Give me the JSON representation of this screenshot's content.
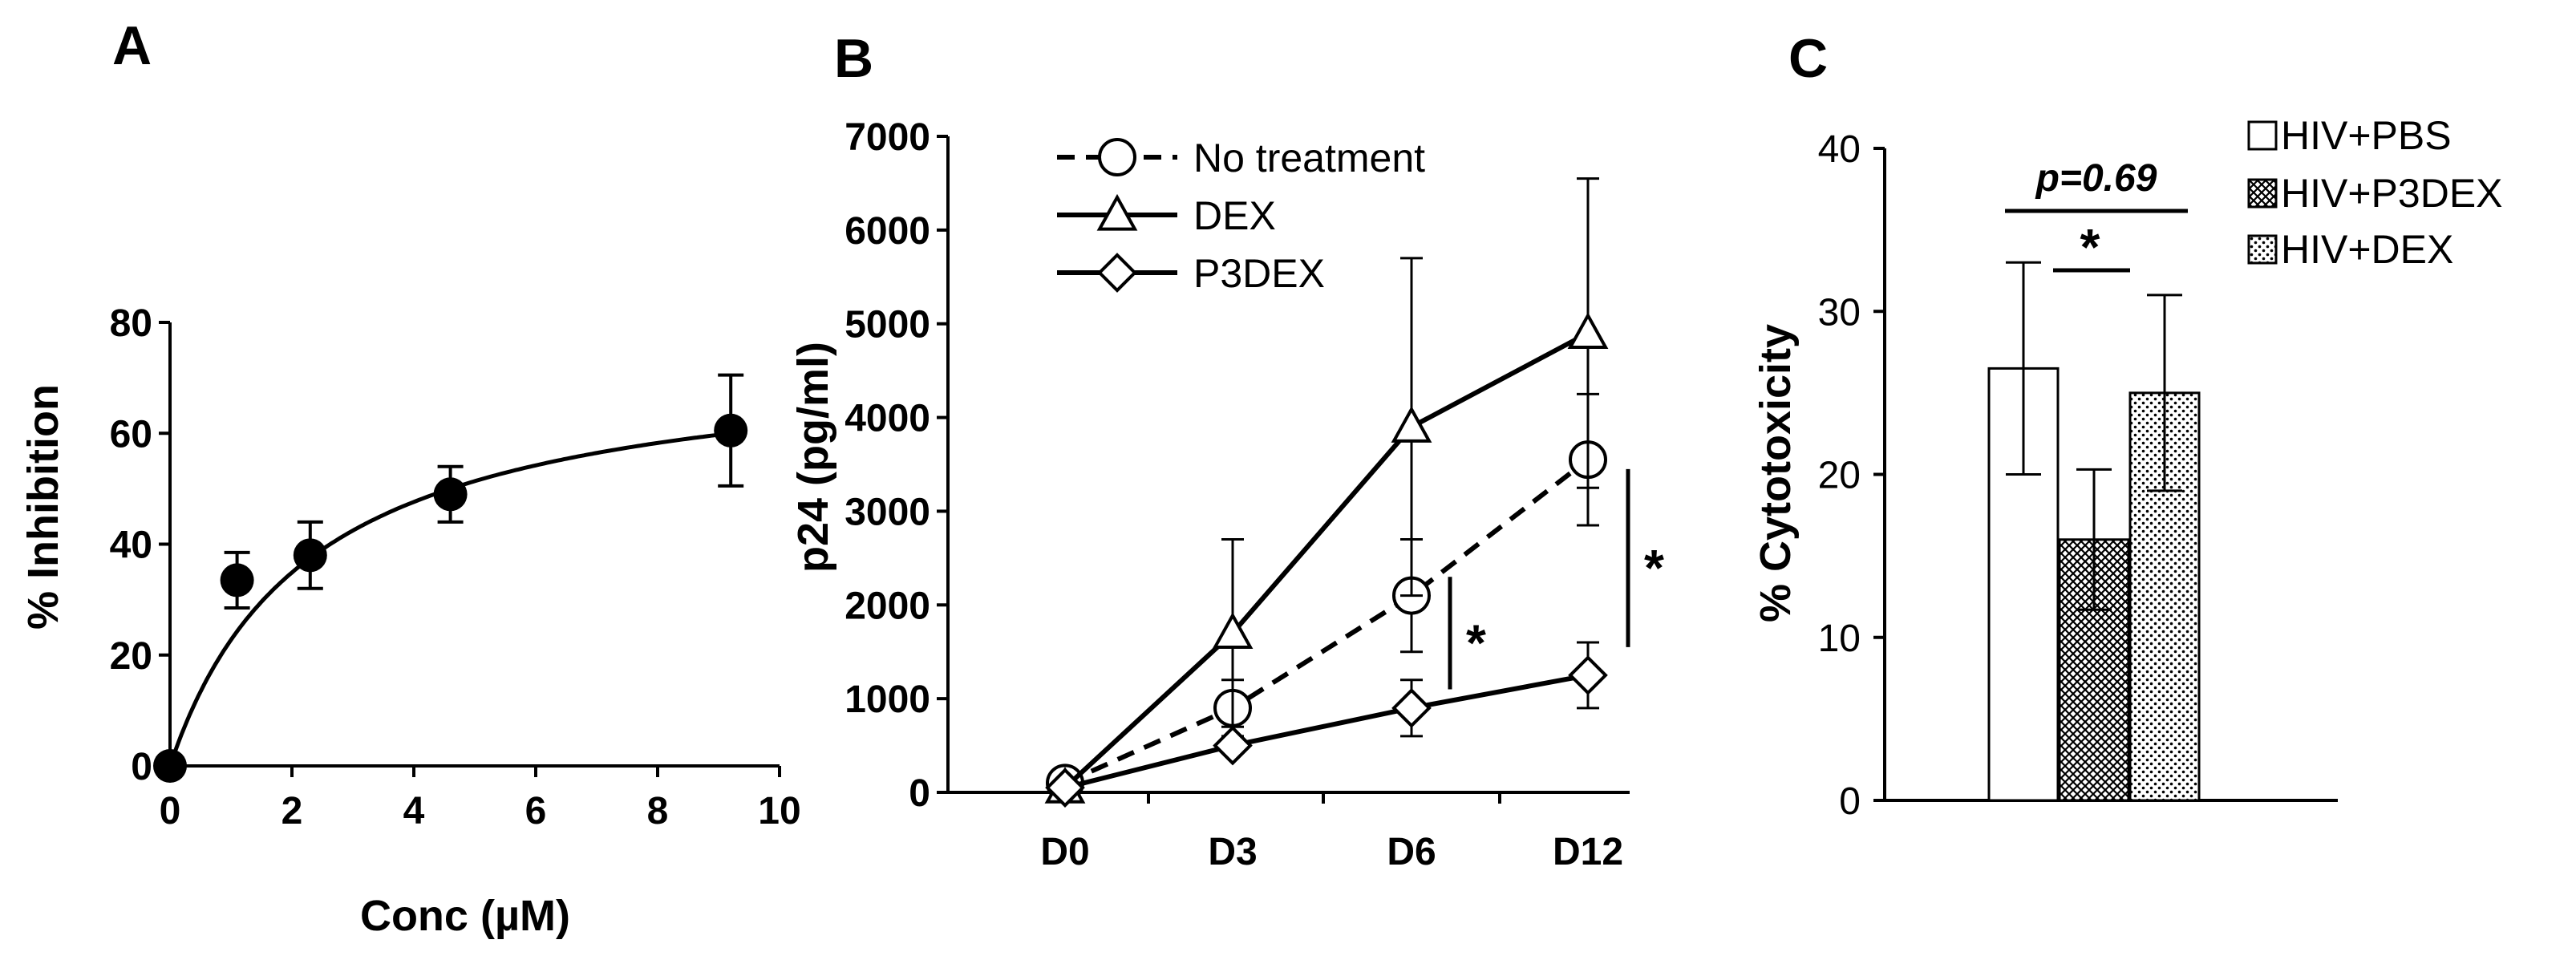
{
  "chart_data": [
    {
      "panel": "A",
      "type": "scatter",
      "xlabel": "Conc (µM)",
      "ylabel": "% Inhibition",
      "xlim": [
        0,
        10
      ],
      "ylim": [
        0,
        80
      ],
      "xticks": [
        "0",
        "2",
        "4",
        "6",
        "8",
        "10"
      ],
      "yticks": [
        "0",
        "20",
        "40",
        "60",
        "80"
      ],
      "points": [
        {
          "x": 0,
          "y": 0,
          "err": 0
        },
        {
          "x": 1.1,
          "y": 33.5,
          "err": 5
        },
        {
          "x": 2.3,
          "y": 38,
          "err": 6
        },
        {
          "x": 4.6,
          "y": 49,
          "err": 5
        },
        {
          "x": 9.2,
          "y": 60.5,
          "err": 10
        }
      ],
      "fit": {
        "model": "hyperbolic",
        "vmax": 75,
        "k": 2.3
      }
    },
    {
      "panel": "B",
      "type": "line",
      "xlabel": "",
      "ylabel": "p24 (pg/ml)",
      "categories": [
        "D0",
        "D3",
        "D6",
        "D12"
      ],
      "ylim": [
        0,
        7000
      ],
      "yticks": [
        "0",
        "1000",
        "2000",
        "3000",
        "4000",
        "5000",
        "6000",
        "7000"
      ],
      "series": [
        {
          "name": "No treatment",
          "marker": "circle",
          "dashed": true,
          "values": [
            100,
            900,
            2100,
            3550
          ],
          "err": [
            0,
            300,
            600,
            700
          ]
        },
        {
          "name": "DEX",
          "marker": "triangle",
          "dashed": false,
          "values": [
            50,
            1700,
            3900,
            4900
          ],
          "err": [
            0,
            1000,
            1800,
            1650
          ]
        },
        {
          "name": "P3DEX",
          "marker": "diamond",
          "dashed": false,
          "values": [
            50,
            500,
            900,
            1250
          ],
          "err": [
            0,
            0,
            300,
            350
          ]
        }
      ],
      "significance": [
        {
          "label": "*",
          "at": "D6"
        },
        {
          "label": "*",
          "at": "D12"
        }
      ]
    },
    {
      "panel": "C",
      "type": "bar",
      "xlabel": "",
      "ylabel": "% Cytotoxicity",
      "ylim": [
        0,
        40
      ],
      "yticks": [
        "0",
        "10",
        "20",
        "30",
        "40"
      ],
      "series": [
        {
          "name": "HIV+PBS",
          "pattern": "open",
          "value": 26.5,
          "err": 6.5
        },
        {
          "name": "HIV+P3DEX",
          "pattern": "crosshatch",
          "value": 16,
          "err": 4.3
        },
        {
          "name": "HIV+DEX",
          "pattern": "dots",
          "value": 25,
          "err": 6
        }
      ],
      "annotations": [
        {
          "label": "p=0.69",
          "between": [
            "HIV+PBS",
            "HIV+DEX"
          ]
        },
        {
          "label": "*",
          "between": [
            "HIV+PBS",
            "HIV+P3DEX"
          ]
        }
      ]
    }
  ]
}
